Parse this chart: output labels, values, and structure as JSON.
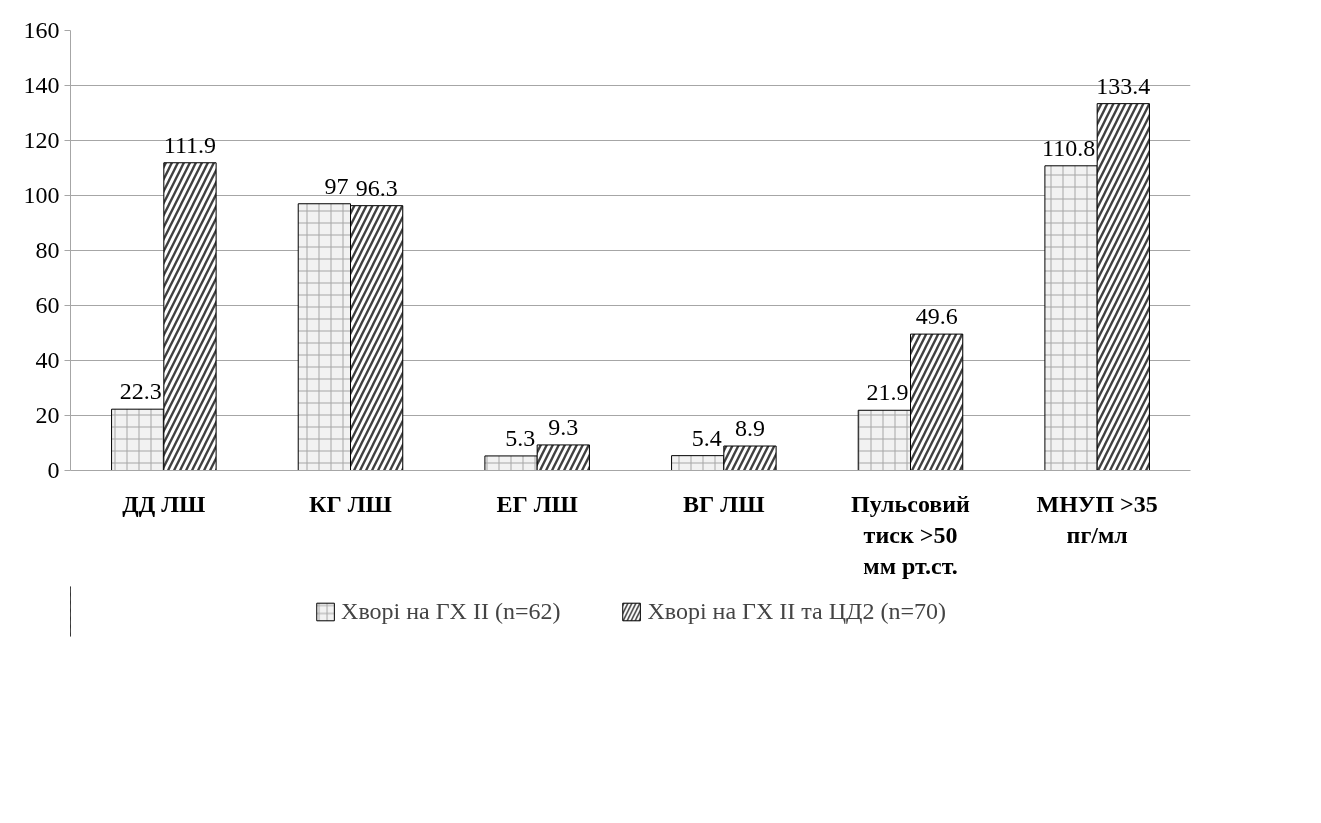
{
  "chart_data": {
    "type": "bar",
    "categories": [
      "ДД ЛШ",
      "КГ ЛШ",
      "ЕГ ЛШ",
      "ВГ ЛШ",
      "Пульсовий\nтиск >50\nмм рт.ст.",
      "МНУП >35\nпг/мл"
    ],
    "series": [
      {
        "name": "Хворі на ГХ ІІ (n=62)",
        "color": "#f2f2f2",
        "values": [
          22.3,
          97,
          5.3,
          5.4,
          21.9,
          110.8
        ]
      },
      {
        "name": "Хворі на ГХ ІІ та ЦД2 (n=70)",
        "color": "#404040",
        "values": [
          111.9,
          96.3,
          9.3,
          8.9,
          49.6,
          133.4
        ]
      }
    ],
    "ylim": [
      0,
      160
    ],
    "yticks": [
      0,
      20,
      40,
      60,
      80,
      100,
      120,
      140,
      160
    ],
    "grid": "y",
    "legend": "bottom",
    "data_labels": true
  }
}
